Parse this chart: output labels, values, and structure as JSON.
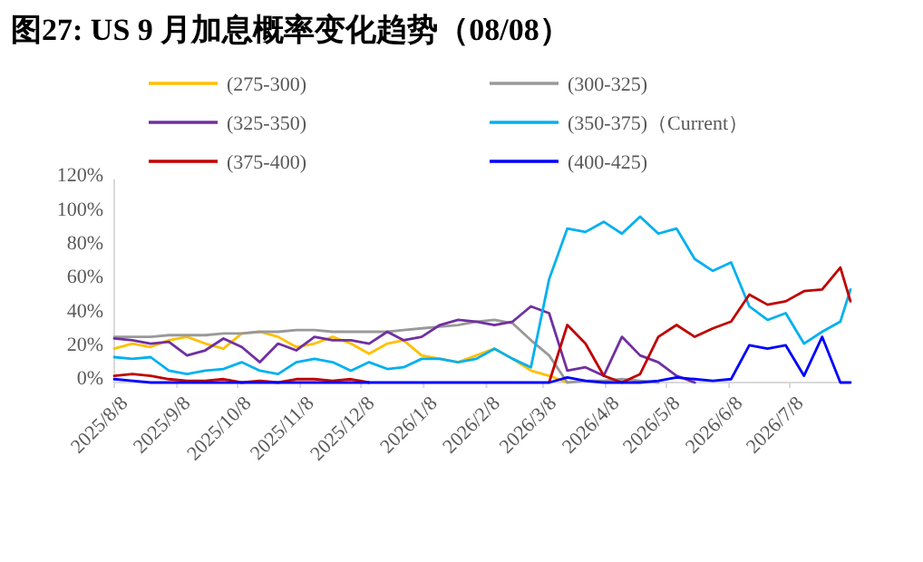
{
  "chart_data": {
    "type": "line",
    "title": "图27:  US 9 月加息概率变化趋势（08/08）",
    "legend": "top",
    "x": [
      "2025-08-08",
      "2025-08-17",
      "2025-08-26",
      "2025-09-04",
      "2025-09-13",
      "2025-09-22",
      "2025-10-01",
      "2025-10-10",
      "2025-10-19",
      "2025-10-28",
      "2025-11-06",
      "2025-11-15",
      "2025-11-24",
      "2025-12-03",
      "2025-12-12",
      "2025-12-21",
      "2025-12-29",
      "2026-01-07",
      "2026-01-16",
      "2026-01-25",
      "2026-02-03",
      "2026-02-12",
      "2026-02-21",
      "2026-03-02",
      "2026-03-11",
      "2026-03-20",
      "2026-03-29",
      "2026-04-07",
      "2026-04-16",
      "2026-04-25",
      "2026-05-04",
      "2026-05-13",
      "2026-05-22",
      "2026-05-31",
      "2026-06-09",
      "2026-06-18",
      "2026-06-27",
      "2026-07-06",
      "2026-07-15",
      "2026-07-24",
      "2026-08-02",
      "2026-08-07"
    ],
    "series": [
      {
        "name": "(275-300)",
        "color": "#ffc000",
        "values": [
          20,
          23,
          21,
          25,
          27,
          23,
          20,
          29,
          30,
          27,
          21,
          23,
          27,
          23,
          17,
          23,
          25,
          16,
          14,
          12,
          16,
          20,
          14,
          7,
          4,
          0,
          null,
          null,
          null,
          null,
          null,
          null,
          null,
          null,
          null,
          null,
          null,
          null,
          null,
          null,
          null,
          null
        ]
      },
      {
        "name": "(300-325)",
        "color": "#999999",
        "values": [
          27,
          27,
          27,
          28,
          28,
          28,
          29,
          29,
          30,
          30,
          31,
          31,
          30,
          30,
          30,
          30,
          31,
          32,
          33,
          34,
          36,
          37,
          35,
          25,
          16,
          0,
          1,
          1,
          2,
          1,
          0,
          null,
          null,
          null,
          null,
          null,
          null,
          null,
          null,
          null,
          null,
          null
        ]
      },
      {
        "name": "(325-350)",
        "color": "#7030a0",
        "values": [
          26,
          25,
          23,
          24,
          16,
          19,
          26,
          21,
          12,
          23,
          19,
          27,
          25,
          25,
          23,
          30,
          25,
          27,
          34,
          37,
          36,
          34,
          36,
          45,
          41,
          7,
          9,
          4,
          27,
          16,
          12,
          4,
          0,
          null,
          null,
          null,
          null,
          null,
          null,
          null,
          null,
          null
        ]
      },
      {
        "name": "(350-375)（Current）",
        "color": "#00b0f0",
        "values": [
          15,
          14,
          15,
          7,
          5,
          7,
          8,
          12,
          7,
          5,
          12,
          14,
          12,
          7,
          12,
          8,
          9,
          14,
          14,
          12,
          14,
          20,
          14,
          9,
          61,
          91,
          89,
          95,
          88,
          98,
          88,
          91,
          73,
          66,
          71,
          45,
          37,
          41,
          23,
          30,
          36,
          55
        ]
      },
      {
        "name": "(375-400)",
        "color": "#c00000",
        "values": [
          4,
          5,
          4,
          2,
          1,
          1,
          2,
          0,
          1,
          0,
          2,
          2,
          1,
          2,
          0,
          null,
          null,
          null,
          null,
          null,
          null,
          null,
          null,
          null,
          0,
          34,
          23,
          4,
          0,
          5,
          27,
          34,
          27,
          32,
          36,
          52,
          46,
          48,
          54,
          55,
          68,
          48
        ]
      },
      {
        "name": "(400-425)",
        "color": "#0000ff",
        "values": [
          2,
          1,
          0,
          0,
          0,
          0,
          0,
          0,
          0,
          0,
          0,
          0,
          0,
          0,
          0,
          0,
          0,
          0,
          0,
          0,
          0,
          0,
          0,
          0,
          0,
          3,
          1,
          0,
          0,
          0,
          1,
          3,
          2,
          1,
          2,
          22,
          20,
          22,
          4,
          27,
          0,
          0
        ]
      }
    ],
    "xlim": [
      "2025-08-08",
      "2026-08-07"
    ],
    "xticks": [
      {
        "value": "2025-08-08",
        "label": "2025/8/8"
      },
      {
        "value": "2025-09-08",
        "label": "2025/9/8"
      },
      {
        "value": "2025-10-08",
        "label": "2025/10/8"
      },
      {
        "value": "2025-11-08",
        "label": "2025/11/8"
      },
      {
        "value": "2025-12-08",
        "label": "2025/12/8"
      },
      {
        "value": "2026-01-08",
        "label": "2026/1/8"
      },
      {
        "value": "2026-02-08",
        "label": "2026/2/8"
      },
      {
        "value": "2026-03-08",
        "label": "2026/3/8"
      },
      {
        "value": "2026-04-08",
        "label": "2026/4/8"
      },
      {
        "value": "2026-05-08",
        "label": "2026/5/8"
      },
      {
        "value": "2026-06-08",
        "label": "2026/6/8"
      },
      {
        "value": "2026-07-08",
        "label": "2026/7/8"
      }
    ],
    "ylim": [
      0,
      120
    ],
    "yticks": [
      {
        "value": 0,
        "label": "0%"
      },
      {
        "value": 20,
        "label": "20%"
      },
      {
        "value": 40,
        "label": "40%"
      },
      {
        "value": 60,
        "label": "60%"
      },
      {
        "value": 80,
        "label": "80%"
      },
      {
        "value": 100,
        "label": "100%"
      },
      {
        "value": 120,
        "label": "120%"
      }
    ]
  }
}
